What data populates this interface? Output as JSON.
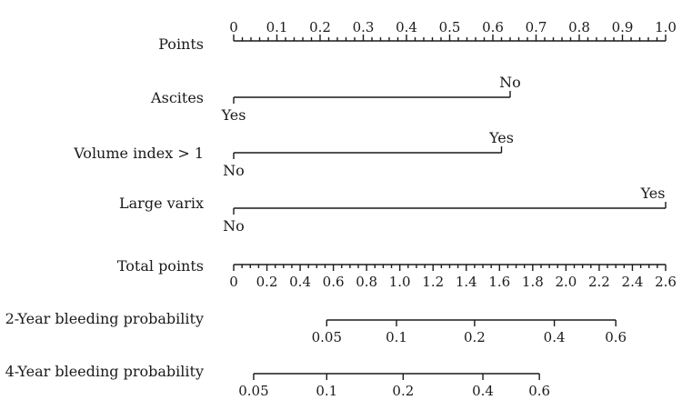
{
  "chart_data": {
    "type": "nomogram",
    "points_scale": {
      "label": "Points",
      "range": [
        0,
        1.0
      ],
      "tick_labels": [
        "0",
        "0.1",
        "0.2",
        "0.3",
        "0.4",
        "0.5",
        "0.6",
        "0.7",
        "0.8",
        "0.9",
        "1.0"
      ]
    },
    "predictors": [
      {
        "label": "Ascites",
        "levels": [
          {
            "name": "Yes",
            "points": 0
          },
          {
            "name": "No",
            "points": 0.64
          }
        ]
      },
      {
        "label": "Volume index > 1",
        "levels": [
          {
            "name": "No",
            "points": 0
          },
          {
            "name": "Yes",
            "points": 0.62
          }
        ]
      },
      {
        "label": "Large varix",
        "levels": [
          {
            "name": "No",
            "points": 0
          },
          {
            "name": "Yes",
            "points": 1.0
          }
        ]
      }
    ],
    "total_points_scale": {
      "label": "Total points",
      "range": [
        0,
        2.6
      ],
      "tick_labels": [
        "0",
        "0.2",
        "0.4",
        "0.6",
        "0.8",
        "1.0",
        "1.2",
        "1.4",
        "1.6",
        "1.8",
        "2.0",
        "2.2",
        "2.4",
        "2.6"
      ]
    },
    "outcome_scales": [
      {
        "label": "2-Year bleeding probability",
        "ticks": [
          {
            "label": "0.05",
            "total_points": 0.56
          },
          {
            "label": "0.1",
            "total_points": 0.98
          },
          {
            "label": "0.2",
            "total_points": 1.45
          },
          {
            "label": "0.4",
            "total_points": 1.93
          },
          {
            "label": "0.6",
            "total_points": 2.3
          }
        ]
      },
      {
        "label": "4-Year bleeding probability",
        "ticks": [
          {
            "label": "0.05",
            "total_points": 0.12
          },
          {
            "label": "0.1",
            "total_points": 0.56
          },
          {
            "label": "0.2",
            "total_points": 1.02
          },
          {
            "label": "0.4",
            "total_points": 1.5
          },
          {
            "label": "0.6",
            "total_points": 1.84
          }
        ]
      }
    ]
  }
}
